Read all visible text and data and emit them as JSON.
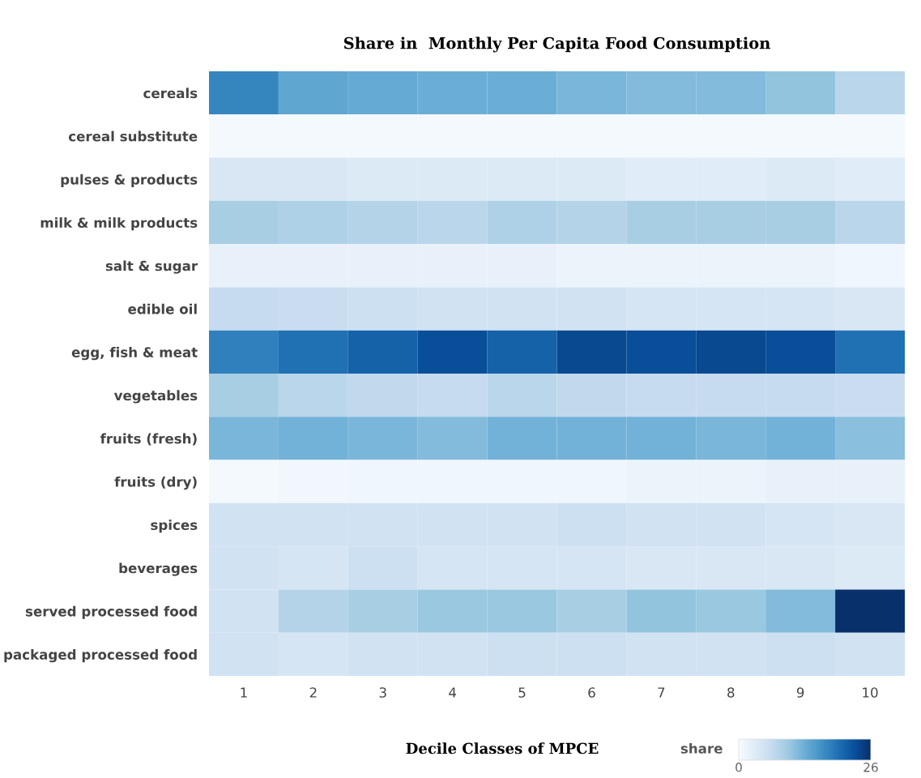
{
  "chart_data": {
    "type": "heatmap",
    "title": "Share in  Monthly Per Capita Food Consumption",
    "xlabel": "Decile Classes of MPCE",
    "clabel": "share",
    "categories": [
      "1",
      "2",
      "3",
      "4",
      "5",
      "6",
      "7",
      "8",
      "9",
      "10"
    ],
    "y_categories": [
      "cereals",
      "cereal substitute",
      "pulses & products",
      "milk & milk products",
      "salt & sugar",
      "edible oil",
      "egg, fish & meat",
      "vegetables",
      "fruits (fresh)",
      "fruits (dry)",
      "spices",
      "beverages",
      "served processed food",
      "packaged processed food"
    ],
    "cells": [
      [
        17.5,
        14,
        13.5,
        13,
        13,
        12,
        11.5,
        11.5,
        10.5,
        7.5
      ],
      [
        0.5,
        0.5,
        0.5,
        0.5,
        0.5,
        0.5,
        0.5,
        0.5,
        0.5,
        0.5
      ],
      [
        4,
        4,
        3.5,
        3.5,
        3.5,
        3.5,
        3,
        3,
        3.5,
        3
      ],
      [
        9,
        8.5,
        8,
        7.5,
        8.5,
        8,
        9,
        9,
        9,
        7.5
      ],
      [
        2,
        2,
        2,
        2,
        2,
        1.5,
        1.5,
        1.5,
        1.5,
        1
      ],
      [
        6.5,
        6,
        5.5,
        5,
        5,
        5,
        4.5,
        4.5,
        4.5,
        4
      ],
      [
        18,
        19.5,
        21,
        23,
        21,
        23.5,
        23,
        23.5,
        23,
        19.5
      ],
      [
        9,
        7.5,
        7,
        6.5,
        7.5,
        7,
        6.5,
        6.5,
        6.5,
        6
      ],
      [
        12,
        12.5,
        12,
        11.5,
        12.5,
        12.5,
        12.5,
        12,
        12.5,
        11
      ],
      [
        0.5,
        0.8,
        1,
        1,
        1,
        1,
        1.5,
        1.5,
        2,
        2
      ],
      [
        5,
        5,
        5,
        5,
        5,
        5.5,
        5,
        5,
        4.5,
        4
      ],
      [
        5,
        4.5,
        5.5,
        4.5,
        4.5,
        4.5,
        4,
        4,
        4,
        3.5
      ],
      [
        5,
        8,
        9,
        10,
        10,
        9,
        10.5,
        10,
        11.5,
        26
      ],
      [
        5,
        4.5,
        5,
        5,
        5.5,
        5.5,
        5,
        5,
        5.5,
        5
      ]
    ],
    "clim": [
      0,
      26
    ],
    "cticks": [
      0,
      26
    ]
  }
}
